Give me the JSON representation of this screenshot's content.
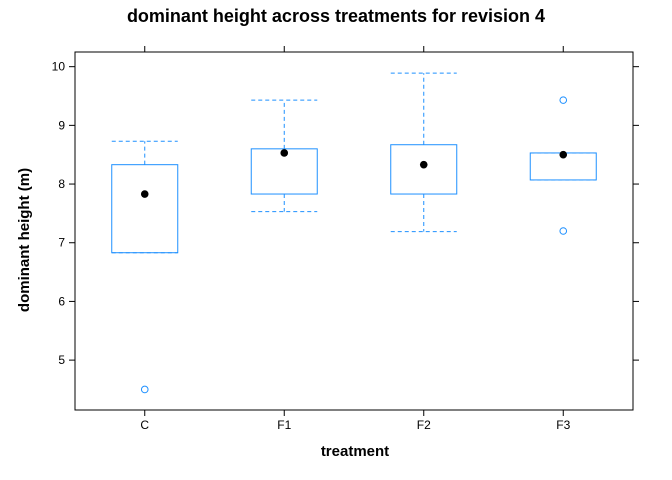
{
  "chart_data": {
    "type": "box",
    "title": "dominant height across treatments for revision 4",
    "xlabel": "treatment",
    "ylabel": "dominant height (m)",
    "categories": [
      "C",
      "F1",
      "F2",
      "F3"
    ],
    "ylim": [
      4.15,
      10.25
    ],
    "yticks": [
      5,
      6,
      7,
      8,
      9,
      10
    ],
    "grid": false,
    "box_color": "#1e90ff",
    "median_color": "#000000",
    "boxes": [
      {
        "category": "C",
        "whisker_low": 6.83,
        "q1": 6.83,
        "median": 7.83,
        "q3": 8.33,
        "whisker_high": 8.73,
        "outliers": [
          4.5
        ]
      },
      {
        "category": "F1",
        "whisker_low": 7.53,
        "q1": 7.83,
        "median": 8.53,
        "q3": 8.6,
        "whisker_high": 9.43,
        "outliers": []
      },
      {
        "category": "F2",
        "whisker_low": 7.19,
        "q1": 7.83,
        "median": 8.33,
        "q3": 8.67,
        "whisker_high": 9.89,
        "outliers": []
      },
      {
        "category": "F3",
        "whisker_low": 8.07,
        "q1": 8.07,
        "median": 8.5,
        "q3": 8.53,
        "whisker_high": 8.53,
        "outliers": [
          9.43,
          7.2
        ]
      }
    ]
  }
}
